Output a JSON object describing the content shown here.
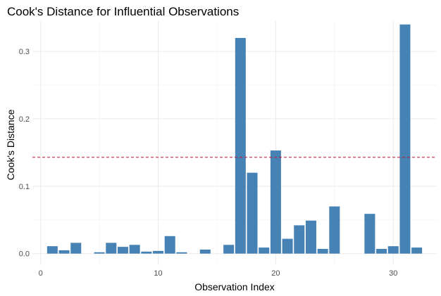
{
  "chart_data": {
    "type": "bar",
    "title": "Cook's Distance for Influential Observations",
    "xlabel": "Observation Index",
    "ylabel": "Cook's Distance",
    "xlim": [
      -0.7,
      33.7
    ],
    "ylim": [
      -0.017,
      0.345
    ],
    "x_ticks": [
      0,
      10,
      20,
      30
    ],
    "x_tick_labels": [
      "0",
      "10",
      "20",
      "30"
    ],
    "y_ticks": [
      0.0,
      0.1,
      0.2,
      0.3
    ],
    "y_tick_labels": [
      "0.0",
      "0.1",
      "0.2",
      "0.3"
    ],
    "grid": true,
    "bar_color": "#4682b4",
    "reference_line": {
      "y": 0.1429,
      "color": "#c8102e",
      "style": "dashed"
    },
    "x": [
      1,
      2,
      3,
      4,
      5,
      6,
      7,
      8,
      9,
      10,
      11,
      12,
      13,
      14,
      15,
      16,
      17,
      18,
      19,
      20,
      21,
      22,
      23,
      24,
      25,
      26,
      27,
      28,
      29,
      30,
      31,
      32
    ],
    "values": [
      0.011,
      0.005,
      0.016,
      0.0,
      0.002,
      0.016,
      0.01,
      0.013,
      0.003,
      0.004,
      0.026,
      0.002,
      0.0,
      0.006,
      0.0,
      0.013,
      0.32,
      0.12,
      0.009,
      0.153,
      0.022,
      0.042,
      0.049,
      0.007,
      0.07,
      0.0,
      0.0,
      0.059,
      0.007,
      0.011,
      0.34,
      0.009
    ]
  }
}
